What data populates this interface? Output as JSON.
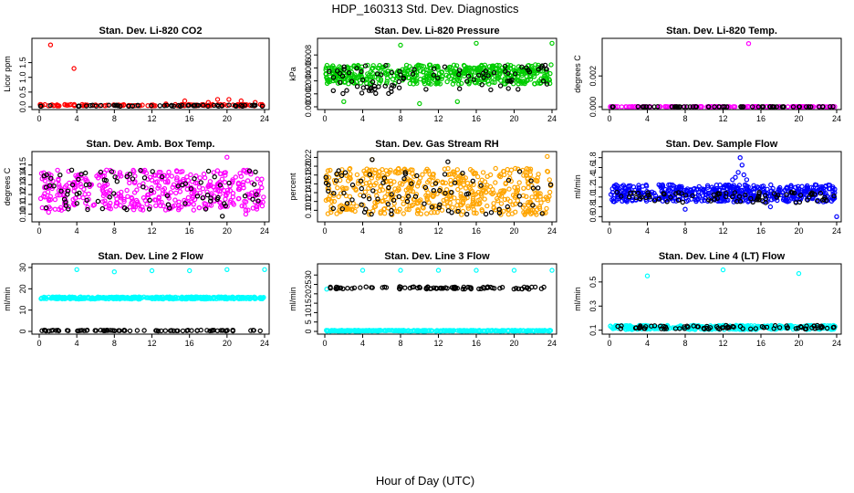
{
  "figure": {
    "title": "HDP_160313  Std. Dev. Diagnostics",
    "xlabel": "Hour of Day (UTC)"
  },
  "colors": {
    "black": "#000000",
    "red": "#ff0000",
    "green": "#00cc00",
    "magenta": "#ff00ff",
    "orange": "#ffa500",
    "blue": "#0000ff",
    "cyan": "#00ffff"
  },
  "chart_data": [
    {
      "type": "scatter",
      "title": "Stan. Dev. Li-820 CO2",
      "ylabel": "Licor ppm",
      "xlim": [
        0,
        24
      ],
      "ylim": [
        0,
        2.2
      ],
      "xticks": [
        "0",
        "4",
        "8",
        "12",
        "16",
        "20",
        "24"
      ],
      "yticks": [
        "0.0",
        "0.5",
        "1.0",
        "1.5"
      ],
      "series": [
        {
          "color": "red",
          "points": [
            [
              1.2,
              2.1
            ],
            [
              3.7,
              1.3
            ],
            [
              13.5,
              0.1
            ],
            [
              15.5,
              0.2
            ],
            [
              18,
              0.15
            ],
            [
              19,
              0.25
            ],
            [
              20.2,
              0.25
            ],
            [
              21.5,
              0.2
            ],
            [
              23,
              0.15
            ]
          ],
          "dense": {
            "xmin": 0.1,
            "xmax": 23.9,
            "ymin": 0.03,
            "ymax": 0.08,
            "n": 120
          }
        },
        {
          "color": "black",
          "points": [],
          "dense": {
            "xmin": 0.1,
            "xmax": 23.9,
            "ymin": 0.02,
            "ymax": 0.06,
            "n": 60
          }
        }
      ]
    },
    {
      "type": "scatter",
      "title": "Stan. Dev. Li-820 Pressure",
      "ylabel": "kPa",
      "xlim": [
        0,
        24
      ],
      "ylim": [
        0,
        0.01
      ],
      "xticks": [
        "0",
        "4",
        "8",
        "12",
        "16",
        "20",
        "24"
      ],
      "yticks": [
        "0.000",
        "0.002",
        "0.004",
        "0.006",
        "0.008"
      ],
      "series": [
        {
          "color": "green",
          "points": [
            [
              8,
              0.0095
            ],
            [
              16,
              0.0098
            ],
            [
              24,
              0.0098
            ],
            [
              2,
              0.0008
            ],
            [
              10,
              0.0005
            ],
            [
              14,
              0.0008
            ]
          ],
          "dense": {
            "xmin": 0.1,
            "xmax": 23.9,
            "ymin": 0.0035,
            "ymax": 0.0065,
            "n": 500
          }
        },
        {
          "color": "black",
          "points": [],
          "dense": {
            "xmin": 0.1,
            "xmax": 23.9,
            "ymin": 0.002,
            "ymax": 0.0065,
            "n": 90
          }
        }
      ]
    },
    {
      "type": "scatter",
      "title": "Stan. Dev. Li-820 Temp.",
      "ylabel": "degrees C",
      "xlim": [
        0,
        24
      ],
      "ylim": [
        0,
        0.0042
      ],
      "xticks": [
        "0",
        "4",
        "8",
        "12",
        "16",
        "20",
        "24"
      ],
      "yticks": [
        "0.000",
        "0.002"
      ],
      "series": [
        {
          "color": "magenta",
          "points": [
            [
              14.7,
              0.0041
            ],
            [
              0.1,
              0.0
            ]
          ],
          "dense": {
            "xmin": 0.1,
            "xmax": 23.9,
            "ymin": 0.0,
            "ymax": 2e-05,
            "n": 150
          }
        },
        {
          "color": "black",
          "points": [],
          "dense": {
            "xmin": 0.1,
            "xmax": 23.9,
            "ymin": 0.0,
            "ymax": 1e-05,
            "n": 60
          }
        }
      ]
    },
    {
      "type": "scatter",
      "title": "Stan. Dev. Amb. Box Temp.",
      "ylabel": "degrees C",
      "xlim": [
        0,
        24
      ],
      "ylim": [
        0.095,
        0.16
      ],
      "xticks": [
        "0",
        "4",
        "8",
        "12",
        "16",
        "20",
        "24"
      ],
      "yticks": [
        "0.10",
        "0.11",
        "0.12",
        "0.13",
        "0.14",
        "0.15"
      ],
      "series": [
        {
          "color": "magenta",
          "points": [
            [
              20,
              0.158
            ],
            [
              1,
              0.102
            ],
            [
              22,
              0.1
            ]
          ],
          "dense": {
            "xmin": 0.1,
            "xmax": 23.9,
            "ymin": 0.104,
            "ymax": 0.145,
            "n": 420
          }
        },
        {
          "color": "black",
          "points": [
            [
              19.5,
              0.098
            ],
            [
              0.8,
              0.14
            ]
          ],
          "dense": {
            "xmin": 0.1,
            "xmax": 23.9,
            "ymin": 0.104,
            "ymax": 0.145,
            "n": 80
          }
        }
      ]
    },
    {
      "type": "scatter",
      "title": "Stan. Dev. Gas Stream RH",
      "ylabel": "percent",
      "xlim": [
        0,
        24
      ],
      "ylim": [
        0.08,
        0.225
      ],
      "xticks": [
        "0",
        "4",
        "8",
        "12",
        "16",
        "20",
        "24"
      ],
      "yticks": [
        "0.10",
        "0.12",
        "0.14",
        "0.16",
        "0.18",
        "0.20",
        "0.22"
      ],
      "series": [
        {
          "color": "orange",
          "points": [
            [
              23.5,
              0.222
            ],
            [
              5,
              0.215
            ]
          ],
          "dense": {
            "xmin": 0.1,
            "xmax": 23.9,
            "ymin": 0.09,
            "ymax": 0.195,
            "n": 520
          }
        },
        {
          "color": "black",
          "points": [
            [
              5,
              0.215
            ],
            [
              13,
              0.21
            ]
          ],
          "dense": {
            "xmin": 0.1,
            "xmax": 23.9,
            "ymin": 0.09,
            "ymax": 0.19,
            "n": 80
          }
        }
      ]
    },
    {
      "type": "scatter",
      "title": "Stan. Dev. Sample Flow",
      "ylabel": "ml/min",
      "xlim": [
        0,
        24
      ],
      "ylim": [
        0.55,
        1.85
      ],
      "xticks": [
        "0",
        "4",
        "8",
        "12",
        "16",
        "20",
        "24"
      ],
      "yticks": [
        "0.6",
        "0.8",
        "1.0",
        "1.2",
        "1.4",
        "1.6",
        "1.8"
      ],
      "series": [
        {
          "color": "blue",
          "points": [
            [
              13.8,
              1.8
            ],
            [
              14,
              1.65
            ],
            [
              13.6,
              1.5
            ],
            [
              14.2,
              1.45
            ],
            [
              13.3,
              1.4
            ],
            [
              14.5,
              1.35
            ],
            [
              13,
              1.35
            ],
            [
              24,
              0.6
            ],
            [
              8,
              0.75
            ],
            [
              17,
              0.8
            ]
          ],
          "dense": {
            "xmin": 0.1,
            "xmax": 23.9,
            "ymin": 0.9,
            "ymax": 1.25,
            "n": 500
          }
        },
        {
          "color": "black",
          "points": [],
          "dense": {
            "xmin": 0.1,
            "xmax": 23.9,
            "ymin": 0.88,
            "ymax": 1.1,
            "n": 80
          }
        }
      ]
    },
    {
      "type": "scatter",
      "title": "Stan. Dev. Line 2 Flow",
      "ylabel": "ml/min",
      "xlim": [
        0,
        24
      ],
      "ylim": [
        0,
        30
      ],
      "xticks": [
        "0",
        "4",
        "8",
        "12",
        "16",
        "20",
        "24"
      ],
      "yticks": [
        "0",
        "10",
        "20",
        "30"
      ],
      "series": [
        {
          "color": "cyan",
          "points": [
            [
              4,
              29
            ],
            [
              8,
              28
            ],
            [
              12,
              28.5
            ],
            [
              16,
              28.5
            ],
            [
              20,
              29
            ],
            [
              24,
              29
            ]
          ],
          "dense": {
            "xmin": 0.1,
            "xmax": 23.9,
            "ymin": 15.2,
            "ymax": 16.2,
            "n": 420
          }
        },
        {
          "color": "black",
          "points": [],
          "dense": {
            "xmin": 0.1,
            "xmax": 23.9,
            "ymin": 0.2,
            "ymax": 0.6,
            "n": 80
          }
        }
      ]
    },
    {
      "type": "scatter",
      "title": "Stan. Dev. Line 3 Flow",
      "ylabel": "ml/min",
      "xlim": [
        0,
        24
      ],
      "ylim": [
        0,
        34
      ],
      "xticks": [
        "0",
        "4",
        "8",
        "12",
        "16",
        "20",
        "24"
      ],
      "yticks": [
        "0",
        "5",
        "10",
        "15",
        "20",
        "25",
        "30"
      ],
      "series": [
        {
          "color": "cyan",
          "points": [
            [
              4,
              32.5
            ],
            [
              8,
              32.5
            ],
            [
              12,
              32.5
            ],
            [
              16,
              32.5
            ],
            [
              20,
              32.5
            ],
            [
              24,
              32.5
            ],
            [
              0.2,
              22.5
            ]
          ],
          "dense": {
            "xmin": 0.1,
            "xmax": 23.9,
            "ymin": 0.1,
            "ymax": 0.6,
            "n": 320
          }
        },
        {
          "color": "black",
          "points": [],
          "dense": {
            "xmin": 0.5,
            "xmax": 23.9,
            "ymin": 22.5,
            "ymax": 23.8,
            "n": 90
          }
        }
      ]
    },
    {
      "type": "scatter",
      "title": "Stan. Dev. Line 4 (LT) Flow",
      "ylabel": "ml/min",
      "xlim": [
        0,
        24
      ],
      "ylim": [
        0.09,
        0.62
      ],
      "xticks": [
        "0",
        "4",
        "8",
        "12",
        "16",
        "20",
        "24"
      ],
      "yticks": [
        "0.1",
        "0.3",
        "0.5"
      ],
      "series": [
        {
          "color": "cyan",
          "points": [
            [
              4,
              0.55
            ],
            [
              12,
              0.6
            ],
            [
              20,
              0.57
            ]
          ],
          "dense": {
            "xmin": 0.1,
            "xmax": 23.9,
            "ymin": 0.105,
            "ymax": 0.14,
            "n": 350
          }
        },
        {
          "color": "black",
          "points": [],
          "dense": {
            "xmin": 0.1,
            "xmax": 23.9,
            "ymin": 0.11,
            "ymax": 0.14,
            "n": 80
          }
        }
      ]
    }
  ]
}
